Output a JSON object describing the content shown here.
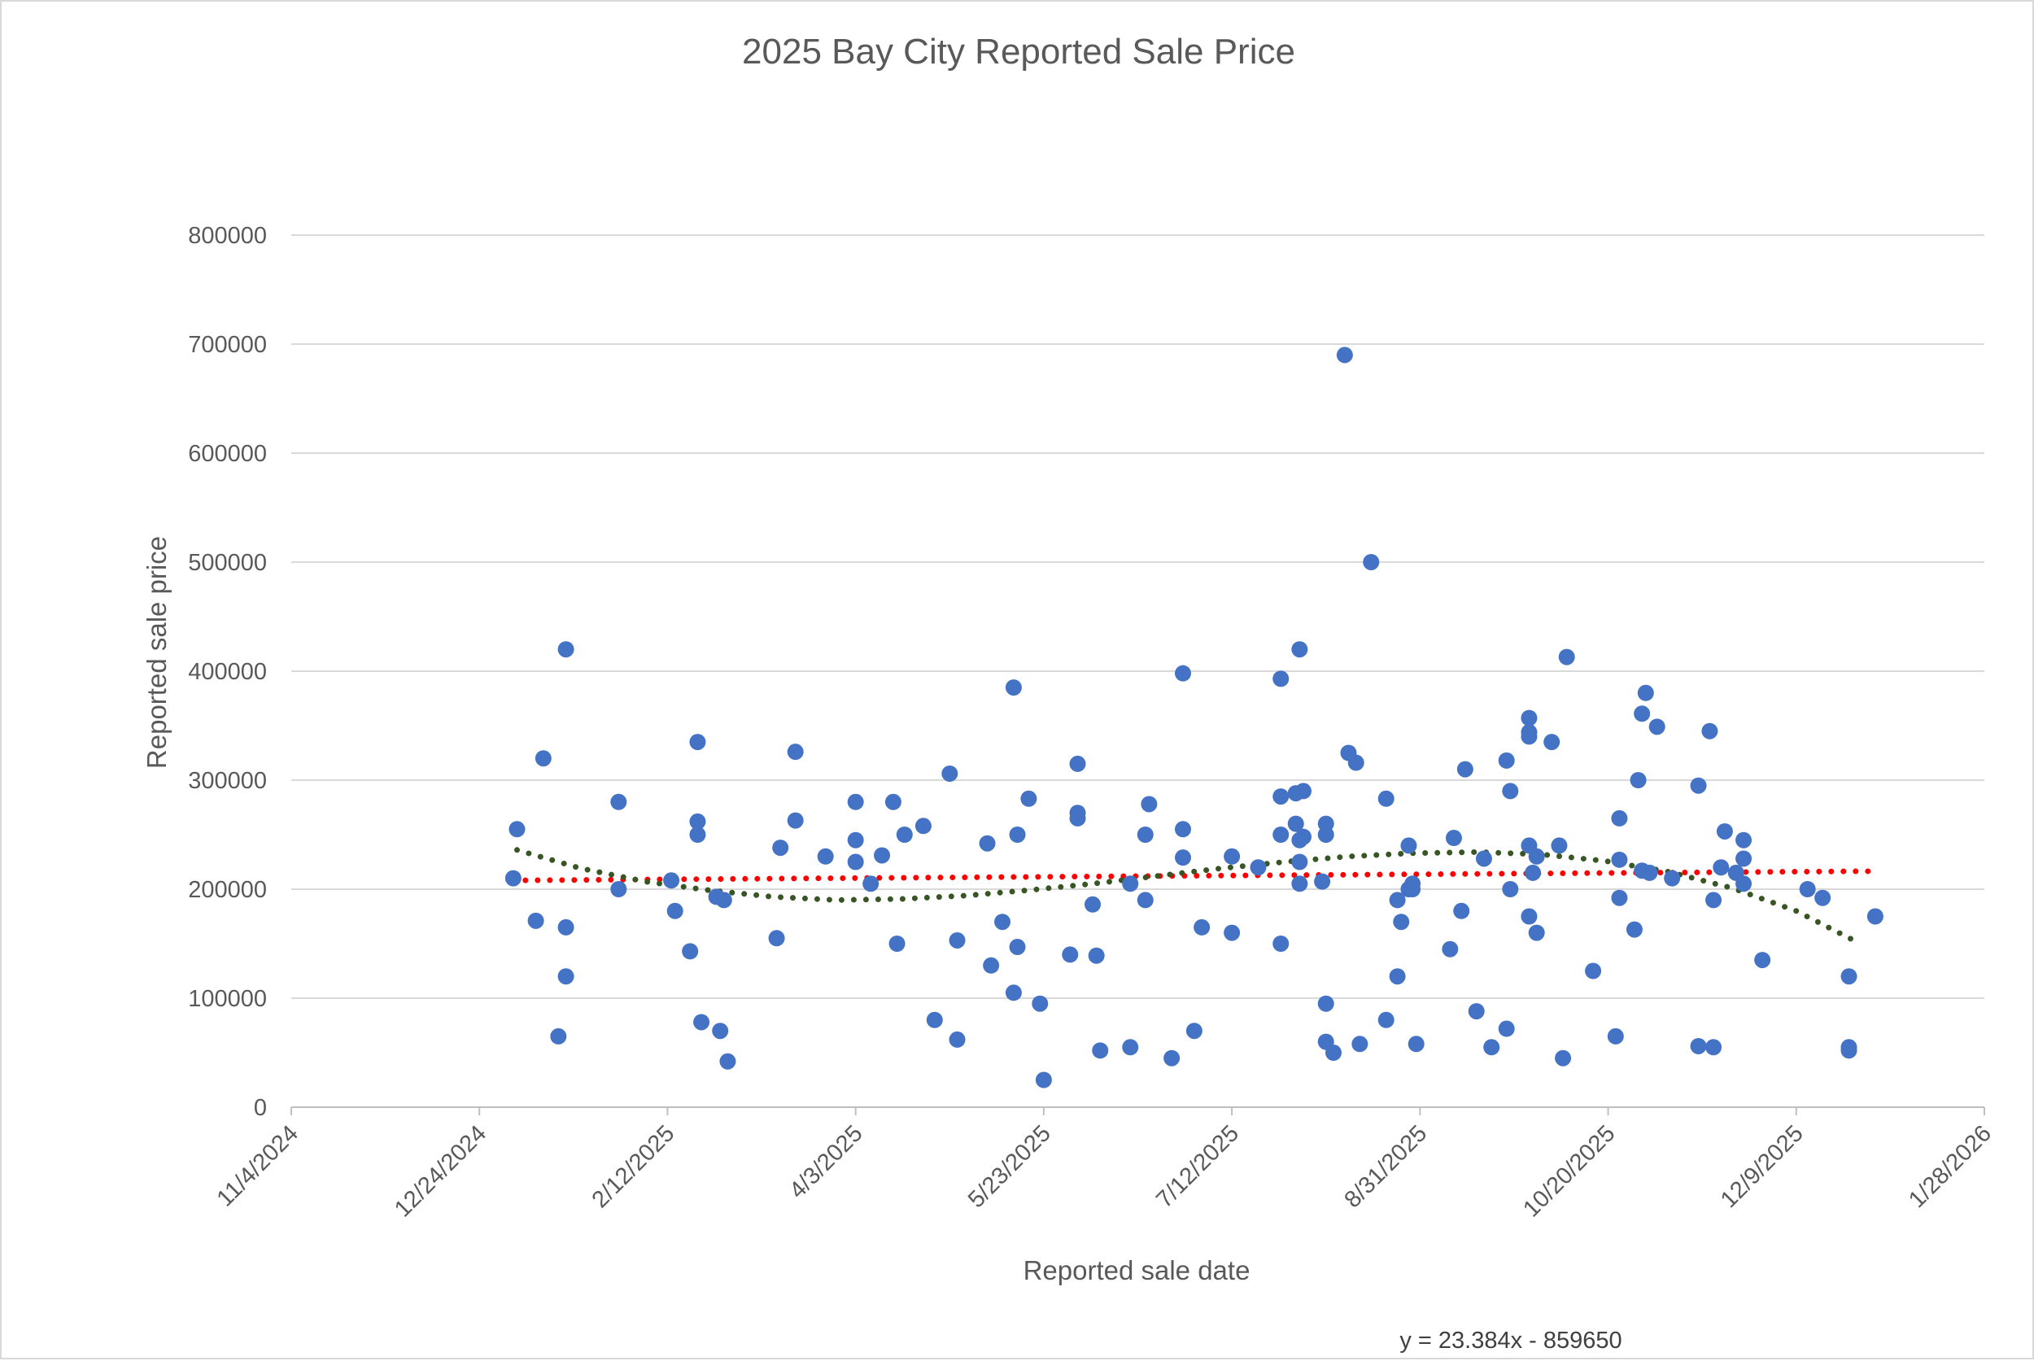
{
  "chart_data": {
    "type": "scatter",
    "title": "2025 Bay City Reported Sale Price",
    "xlabel": "Reported sale date",
    "ylabel": "Reported sale price",
    "x_axis": {
      "kind": "date",
      "min": "2024-11-04",
      "max": "2026-01-28",
      "ticks": [
        "2024-11-04",
        "2024-12-24",
        "2025-02-12",
        "2025-04-03",
        "2025-05-23",
        "2025-07-12",
        "2025-08-31",
        "2025-10-20",
        "2025-12-09",
        "2026-01-28"
      ],
      "tick_labels": [
        "11/4/2024",
        "12/24/2024",
        "2/12/2025",
        "4/3/2025",
        "5/23/2025",
        "7/12/2025",
        "8/31/2025",
        "10/20/2025",
        "12/9/2025",
        "1/28/2026"
      ]
    },
    "y_axis": {
      "min": 0,
      "max": 800000,
      "ticks": [
        0,
        100000,
        200000,
        300000,
        400000,
        500000,
        600000,
        700000,
        800000
      ],
      "tick_labels": [
        "0",
        "100000",
        "200000",
        "300000",
        "400000",
        "500000",
        "600000",
        "700000",
        "800000"
      ]
    },
    "grid": true,
    "legend": "none",
    "marker_color": "#4472C4",
    "trendlines": [
      {
        "kind": "linear",
        "color": "#FF0000",
        "style": "dotted",
        "slope": 23.384,
        "intercept": -859650,
        "equation": "y = 23.384x - 859650"
      },
      {
        "kind": "polynomial",
        "color": "#375623",
        "style": "dotted",
        "points": [
          [
            "2025-01-03",
            236000
          ],
          [
            "2025-01-20",
            219000
          ],
          [
            "2025-02-06",
            207000
          ],
          [
            "2025-02-23",
            199000
          ],
          [
            "2025-03-12",
            193000
          ],
          [
            "2025-03-29",
            190000
          ],
          [
            "2025-04-15",
            191000
          ],
          [
            "2025-05-02",
            194000
          ],
          [
            "2025-05-19",
            199000
          ],
          [
            "2025-06-05",
            205000
          ],
          [
            "2025-06-22",
            212000
          ],
          [
            "2025-07-09",
            219000
          ],
          [
            "2025-07-26",
            225000
          ],
          [
            "2025-08-12",
            230000
          ],
          [
            "2025-08-29",
            233000
          ],
          [
            "2025-09-15",
            234000
          ],
          [
            "2025-10-02",
            232000
          ],
          [
            "2025-10-19",
            226000
          ],
          [
            "2025-11-05",
            216000
          ],
          [
            "2025-11-22",
            201000
          ],
          [
            "2025-12-09",
            180000
          ],
          [
            "2025-12-26",
            150000
          ]
        ]
      }
    ],
    "points": [
      [
        "2025-01-02",
        210000
      ],
      [
        "2025-01-03",
        255000
      ],
      [
        "2025-01-08",
        171000
      ],
      [
        "2025-01-10",
        320000
      ],
      [
        "2025-01-14",
        65000
      ],
      [
        "2025-01-16",
        420000
      ],
      [
        "2025-01-16",
        165000
      ],
      [
        "2025-01-16",
        120000
      ],
      [
        "2025-01-30",
        280000
      ],
      [
        "2025-01-30",
        200000
      ],
      [
        "2025-02-13",
        208000
      ],
      [
        "2025-02-14",
        180000
      ],
      [
        "2025-02-18",
        143000
      ],
      [
        "2025-02-20",
        335000
      ],
      [
        "2025-02-20",
        262000
      ],
      [
        "2025-02-20",
        250000
      ],
      [
        "2025-02-21",
        78000
      ],
      [
        "2025-02-25",
        193000
      ],
      [
        "2025-02-26",
        70000
      ],
      [
        "2025-02-27",
        190000
      ],
      [
        "2025-02-28",
        42000
      ],
      [
        "2025-03-13",
        155000
      ],
      [
        "2025-03-14",
        238000
      ],
      [
        "2025-03-18",
        326000
      ],
      [
        "2025-03-18",
        263000
      ],
      [
        "2025-03-26",
        230000
      ],
      [
        "2025-04-03",
        280000
      ],
      [
        "2025-04-03",
        245000
      ],
      [
        "2025-04-03",
        225000
      ],
      [
        "2025-04-07",
        205000
      ],
      [
        "2025-04-10",
        231000
      ],
      [
        "2025-04-13",
        280000
      ],
      [
        "2025-04-14",
        150000
      ],
      [
        "2025-04-16",
        250000
      ],
      [
        "2025-04-21",
        258000
      ],
      [
        "2025-04-24",
        80000
      ],
      [
        "2025-04-28",
        306000
      ],
      [
        "2025-04-30",
        153000
      ],
      [
        "2025-04-30",
        62000
      ],
      [
        "2025-05-08",
        242000
      ],
      [
        "2025-05-09",
        130000
      ],
      [
        "2025-05-12",
        170000
      ],
      [
        "2025-05-15",
        385000
      ],
      [
        "2025-05-15",
        105000
      ],
      [
        "2025-05-16",
        250000
      ],
      [
        "2025-05-16",
        147000
      ],
      [
        "2025-05-19",
        283000
      ],
      [
        "2025-05-22",
        95000
      ],
      [
        "2025-05-23",
        25000
      ],
      [
        "2025-05-30",
        140000
      ],
      [
        "2025-06-01",
        315000
      ],
      [
        "2025-06-01",
        270000
      ],
      [
        "2025-06-01",
        265000
      ],
      [
        "2025-06-05",
        186000
      ],
      [
        "2025-06-06",
        139000
      ],
      [
        "2025-06-07",
        52000
      ],
      [
        "2025-06-15",
        205000
      ],
      [
        "2025-06-15",
        55000
      ],
      [
        "2025-06-19",
        250000
      ],
      [
        "2025-06-19",
        190000
      ],
      [
        "2025-06-20",
        278000
      ],
      [
        "2025-06-26",
        45000
      ],
      [
        "2025-06-29",
        398000
      ],
      [
        "2025-06-29",
        255000
      ],
      [
        "2025-06-29",
        229000
      ],
      [
        "2025-07-02",
        70000
      ],
      [
        "2025-07-04",
        165000
      ],
      [
        "2025-07-12",
        230000
      ],
      [
        "2025-07-12",
        160000
      ],
      [
        "2025-07-19",
        220000
      ],
      [
        "2025-07-25",
        393000
      ],
      [
        "2025-07-25",
        285000
      ],
      [
        "2025-07-25",
        250000
      ],
      [
        "2025-07-25",
        150000
      ],
      [
        "2025-07-29",
        288000
      ],
      [
        "2025-07-29",
        260000
      ],
      [
        "2025-07-30",
        420000
      ],
      [
        "2025-07-30",
        245000
      ],
      [
        "2025-07-30",
        225000
      ],
      [
        "2025-07-30",
        205000
      ],
      [
        "2025-07-31",
        290000
      ],
      [
        "2025-07-31",
        248000
      ],
      [
        "2025-08-05",
        207000
      ],
      [
        "2025-08-06",
        260000
      ],
      [
        "2025-08-06",
        250000
      ],
      [
        "2025-08-06",
        95000
      ],
      [
        "2025-08-06",
        60000
      ],
      [
        "2025-08-08",
        50000
      ],
      [
        "2025-08-11",
        690000
      ],
      [
        "2025-08-12",
        325000
      ],
      [
        "2025-08-14",
        316000
      ],
      [
        "2025-08-15",
        58000
      ],
      [
        "2025-08-18",
        500000
      ],
      [
        "2025-08-22",
        283000
      ],
      [
        "2025-08-22",
        80000
      ],
      [
        "2025-08-25",
        190000
      ],
      [
        "2025-08-25",
        120000
      ],
      [
        "2025-08-26",
        170000
      ],
      [
        "2025-08-28",
        240000
      ],
      [
        "2025-08-28",
        200000
      ],
      [
        "2025-08-29",
        205000
      ],
      [
        "2025-08-29",
        200000
      ],
      [
        "2025-08-30",
        58000
      ],
      [
        "2025-09-08",
        145000
      ],
      [
        "2025-09-09",
        247000
      ],
      [
        "2025-09-11",
        180000
      ],
      [
        "2025-09-12",
        310000
      ],
      [
        "2025-09-15",
        88000
      ],
      [
        "2025-09-17",
        228000
      ],
      [
        "2025-09-19",
        55000
      ],
      [
        "2025-09-23",
        318000
      ],
      [
        "2025-09-23",
        72000
      ],
      [
        "2025-09-24",
        290000
      ],
      [
        "2025-09-24",
        200000
      ],
      [
        "2025-09-29",
        357000
      ],
      [
        "2025-09-29",
        344000
      ],
      [
        "2025-09-29",
        340000
      ],
      [
        "2025-09-29",
        240000
      ],
      [
        "2025-09-29",
        175000
      ],
      [
        "2025-09-30",
        215000
      ],
      [
        "2025-10-01",
        230000
      ],
      [
        "2025-10-01",
        160000
      ],
      [
        "2025-10-05",
        335000
      ],
      [
        "2025-10-07",
        240000
      ],
      [
        "2025-10-08",
        45000
      ],
      [
        "2025-10-09",
        413000
      ],
      [
        "2025-10-16",
        125000
      ],
      [
        "2025-10-22",
        65000
      ],
      [
        "2025-10-23",
        265000
      ],
      [
        "2025-10-23",
        227000
      ],
      [
        "2025-10-23",
        192000
      ],
      [
        "2025-10-27",
        163000
      ],
      [
        "2025-10-28",
        300000
      ],
      [
        "2025-10-29",
        361000
      ],
      [
        "2025-10-29",
        217000
      ],
      [
        "2025-10-30",
        380000
      ],
      [
        "2025-10-31",
        215000
      ],
      [
        "2025-11-02",
        349000
      ],
      [
        "2025-11-06",
        210000
      ],
      [
        "2025-11-13",
        295000
      ],
      [
        "2025-11-13",
        56000
      ],
      [
        "2025-11-16",
        345000
      ],
      [
        "2025-11-17",
        190000
      ],
      [
        "2025-11-17",
        55000
      ],
      [
        "2025-11-19",
        220000
      ],
      [
        "2025-11-20",
        253000
      ],
      [
        "2025-11-23",
        215000
      ],
      [
        "2025-11-25",
        245000
      ],
      [
        "2025-11-25",
        228000
      ],
      [
        "2025-11-25",
        205000
      ],
      [
        "2025-11-30",
        135000
      ],
      [
        "2025-12-12",
        200000
      ],
      [
        "2025-12-16",
        192000
      ],
      [
        "2025-12-23",
        120000
      ],
      [
        "2025-12-23",
        55000
      ],
      [
        "2025-12-23",
        52000
      ],
      [
        "2025-12-30",
        175000
      ]
    ]
  }
}
